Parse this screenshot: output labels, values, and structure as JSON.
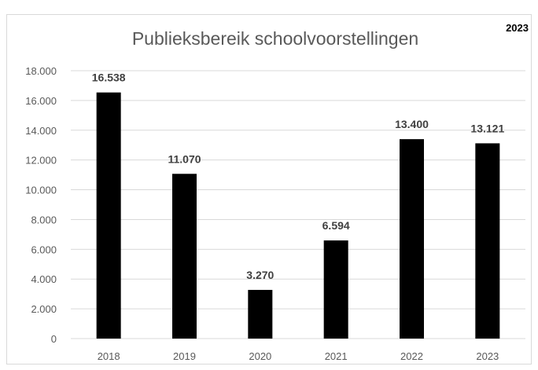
{
  "corner_label": "2023",
  "chart_data": {
    "type": "bar",
    "title": "Publieksbereik schoolvoorstellingen",
    "xlabel": "",
    "ylabel": "",
    "categories": [
      "2018",
      "2019",
      "2020",
      "2021",
      "2022",
      "2023"
    ],
    "values": [
      16538,
      11070,
      3270,
      6594,
      13400,
      13121
    ],
    "data_labels": [
      "16.538",
      "11.070",
      "3.270",
      "6.594",
      "13.400",
      "13.121"
    ],
    "ylim": [
      0,
      18000
    ],
    "y_ticks": [
      0,
      2000,
      4000,
      6000,
      8000,
      10000,
      12000,
      14000,
      16000,
      18000
    ],
    "y_tick_labels": [
      "0",
      "2.000",
      "4.000",
      "6.000",
      "8.000",
      "10.000",
      "12.000",
      "14.000",
      "16.000",
      "18.000"
    ],
    "grid": true,
    "legend": "none",
    "colors": {
      "bar": "#000000",
      "grid": "#d9d9d9",
      "axis_text": "#595959",
      "title": "#595959",
      "label": "#404040",
      "border": "#d9d9d9"
    }
  }
}
